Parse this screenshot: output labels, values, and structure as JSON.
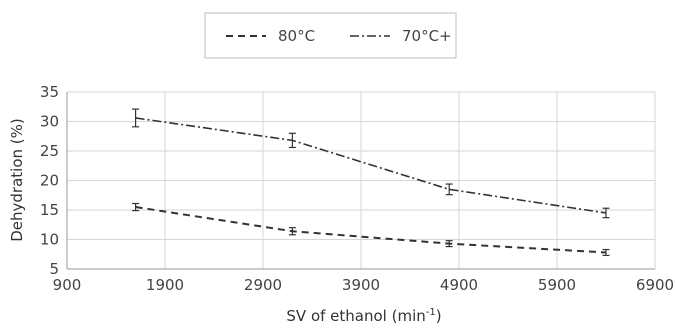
{
  "chart_data": {
    "type": "line",
    "xlabel": "SV of ethanol (min",
    "xlabel_sup": "-1",
    "xlabel_close": ")",
    "ylabel": "Dehydration (%)",
    "xlim": [
      900,
      6900
    ],
    "ylim": [
      5,
      35
    ],
    "xticks": [
      900,
      1900,
      2900,
      3900,
      4900,
      5900,
      6900
    ],
    "yticks": [
      5,
      10,
      15,
      20,
      25,
      30,
      35
    ],
    "grid": true,
    "legend_position": "top-center",
    "series": [
      {
        "name": "80°C",
        "dash": "dashed",
        "color": "#333333",
        "x": [
          1600,
          3200,
          4800,
          6400
        ],
        "y": [
          15.5,
          11.4,
          9.3,
          7.8
        ],
        "err": [
          0.6,
          0.6,
          0.5,
          0.5
        ]
      },
      {
        "name": "70°C+",
        "dash": "dashdot",
        "color": "#333333",
        "x": [
          1600,
          3200,
          4800,
          6400
        ],
        "y": [
          30.6,
          26.8,
          18.5,
          14.5
        ],
        "err": [
          1.5,
          1.2,
          0.9,
          0.8
        ]
      }
    ]
  }
}
